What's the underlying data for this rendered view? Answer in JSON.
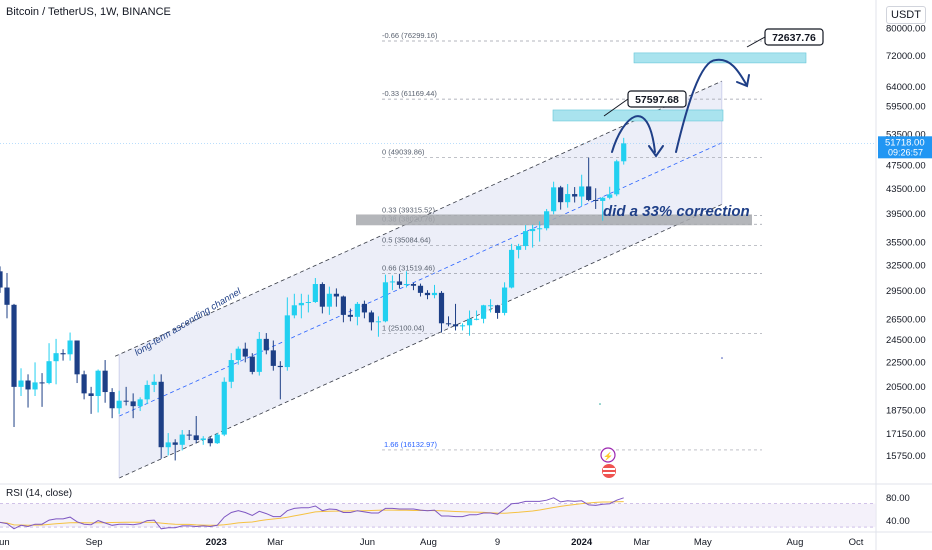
{
  "header": {
    "symbol_line": "Bitcoin / TetherUS, 1W, BINANCE",
    "quote_currency": "USDT"
  },
  "colors": {
    "up": "#22d0f0",
    "down": "#1d3f86",
    "channel_fill": "#e6e8f6",
    "target_box": "#a9e3ee",
    "level_line": "#9a9ea8",
    "fib_text": "#5a6270",
    "blue_text": "#2962ff",
    "annotation": "#1f3f87",
    "current_price_bg": "#2196f3",
    "rsi_line": "#7e57c2",
    "rsi_ma": "#f5c242"
  },
  "chart_data": {
    "type": "candlestick",
    "title": "Bitcoin / TetherUS, 1W, BINANCE",
    "ylim": [
      14500,
      82000
    ],
    "y_scale": "log",
    "y_ticks": [
      "80000.00",
      "72000.00",
      "64000.00",
      "59500.00",
      "53500.00",
      "47500.00",
      "43500.00",
      "39500.00",
      "35500.00",
      "32500.00",
      "29500.00",
      "26500.00",
      "24500.00",
      "22500.00",
      "20500.00",
      "18750.00",
      "17150.00",
      "15750.00"
    ],
    "y_tick_values": [
      80000,
      72000,
      64000,
      59500,
      53500,
      47500,
      43500,
      39500,
      35500,
      32500,
      29500,
      26500,
      24500,
      22500,
      20500,
      18750,
      17150,
      15750
    ],
    "x_labels": [
      {
        "label": "Jun",
        "date": "2022-06-01"
      },
      {
        "label": "Sep",
        "date": "2022-09-01"
      },
      {
        "label": "2023",
        "date": "2023-01-01"
      },
      {
        "label": "Mar",
        "date": "2023-03-01"
      },
      {
        "label": "Jun",
        "date": "2023-06-01"
      },
      {
        "label": "Aug",
        "date": "2023-08-01"
      },
      {
        "label": "9",
        "date": "2023-10-09"
      },
      {
        "label": "2024",
        "date": "2024-01-01"
      },
      {
        "label": "Mar",
        "date": "2024-03-01"
      },
      {
        "label": "May",
        "date": "2024-05-01"
      },
      {
        "label": "Aug",
        "date": "2024-08-01"
      },
      {
        "label": "Oct",
        "date": "2024-10-01"
      }
    ],
    "date_range": [
      "2022-05-30",
      "2024-10-21"
    ],
    "current_price": "51718.00",
    "countdown": "09:26:57",
    "candles": [
      [
        "2022-05-30",
        31800,
        32400,
        29300,
        29900
      ],
      [
        "2022-06-06",
        29900,
        31600,
        26600,
        28000
      ],
      [
        "2022-06-13",
        28000,
        28100,
        17600,
        20500
      ],
      [
        "2022-06-20",
        20500,
        22000,
        19800,
        21000
      ],
      [
        "2022-06-27",
        21000,
        21500,
        18950,
        20300
      ],
      [
        "2022-07-04",
        20300,
        22500,
        19800,
        20850
      ],
      [
        "2022-07-11",
        20850,
        21600,
        19000,
        20800
      ],
      [
        "2022-07-18",
        20800,
        24200,
        20700,
        22600
      ],
      [
        "2022-07-25",
        22600,
        24600,
        20700,
        23300
      ],
      [
        "2022-08-01",
        23300,
        23650,
        22650,
        23200
      ],
      [
        "2022-08-08",
        23200,
        25200,
        22650,
        24450
      ],
      [
        "2022-08-15",
        24450,
        24450,
        20800,
        21500
      ],
      [
        "2022-08-22",
        21500,
        21800,
        19550,
        20000
      ],
      [
        "2022-08-29",
        20000,
        20500,
        18500,
        19800
      ],
      [
        "2022-09-05",
        19800,
        21900,
        18600,
        21800
      ],
      [
        "2022-09-12",
        21800,
        22700,
        19300,
        20100
      ],
      [
        "2022-09-19",
        20100,
        20400,
        18200,
        18900
      ],
      [
        "2022-09-26",
        18900,
        20200,
        18500,
        19450
      ],
      [
        "2022-10-03",
        19450,
        20500,
        19100,
        19400
      ],
      [
        "2022-10-10",
        19400,
        20000,
        18200,
        19050
      ],
      [
        "2022-10-17",
        19050,
        19700,
        18700,
        19550
      ],
      [
        "2022-10-24",
        19550,
        21000,
        19200,
        20650
      ],
      [
        "2022-10-31",
        20650,
        21500,
        20100,
        20900
      ],
      [
        "2022-11-07",
        20900,
        21500,
        15600,
        16300
      ],
      [
        "2022-11-14",
        16300,
        17200,
        15800,
        16600
      ],
      [
        "2022-11-21",
        16600,
        16800,
        15500,
        16450
      ],
      [
        "2022-11-28",
        16450,
        17400,
        16100,
        17100
      ],
      [
        "2022-12-05",
        17100,
        17400,
        16750,
        17050
      ],
      [
        "2022-12-12",
        17050,
        18350,
        16550,
        16750
      ],
      [
        "2022-12-19",
        16750,
        17000,
        16450,
        16850
      ],
      [
        "2022-12-26",
        16850,
        16950,
        16350,
        16550
      ],
      [
        "2023-01-02",
        16550,
        17200,
        16500,
        17100
      ],
      [
        "2023-01-09",
        17100,
        21250,
        17000,
        20900
      ],
      [
        "2023-01-16",
        20900,
        23300,
        20400,
        22700
      ],
      [
        "2023-01-23",
        22700,
        23900,
        22300,
        23700
      ],
      [
        "2023-01-30",
        23700,
        24250,
        22500,
        23000
      ],
      [
        "2023-02-06",
        23000,
        23300,
        21500,
        21700
      ],
      [
        "2023-02-13",
        21700,
        25250,
        21400,
        24600
      ],
      [
        "2023-02-20",
        24600,
        25150,
        23200,
        23550
      ],
      [
        "2023-02-27",
        23550,
        24450,
        21800,
        22200
      ],
      [
        "2023-03-06",
        22200,
        22600,
        19550,
        22100
      ],
      [
        "2023-03-13",
        22100,
        28800,
        21800,
        26900
      ],
      [
        "2023-03-20",
        26900,
        29200,
        26600,
        27950
      ],
      [
        "2023-03-27",
        27950,
        29200,
        26600,
        28200
      ],
      [
        "2023-04-03",
        28200,
        29100,
        27200,
        28300
      ],
      [
        "2023-04-10",
        28300,
        31000,
        28200,
        30300
      ],
      [
        "2023-04-17",
        30300,
        30500,
        27100,
        27800
      ],
      [
        "2023-04-24",
        27800,
        30000,
        26950,
        29200
      ],
      [
        "2023-05-01",
        29200,
        29800,
        27800,
        28900
      ],
      [
        "2023-05-08",
        28900,
        29000,
        26200,
        26950
      ],
      [
        "2023-05-15",
        26950,
        27600,
        26300,
        26750
      ],
      [
        "2023-05-22",
        26750,
        28300,
        25900,
        28100
      ],
      [
        "2023-05-29",
        28100,
        28450,
        26600,
        27200
      ],
      [
        "2023-06-05",
        27200,
        27400,
        25400,
        26200
      ],
      [
        "2023-06-12",
        26200,
        26800,
        24800,
        26300
      ],
      [
        "2023-06-19",
        26300,
        31400,
        26200,
        30500
      ],
      [
        "2023-06-26",
        30500,
        31300,
        29600,
        30600
      ],
      [
        "2023-07-03",
        30600,
        31500,
        29800,
        30200
      ],
      [
        "2023-07-10",
        30200,
        31800,
        29900,
        30300
      ],
      [
        "2023-07-17",
        30300,
        30450,
        29600,
        30100
      ],
      [
        "2023-07-24",
        30100,
        30350,
        28900,
        29300
      ],
      [
        "2023-07-31",
        29300,
        29600,
        28600,
        29050
      ],
      [
        "2023-08-07",
        29050,
        30200,
        28700,
        29300
      ],
      [
        "2023-08-14",
        29300,
        29500,
        25200,
        26100
      ],
      [
        "2023-08-21",
        26100,
        26800,
        25800,
        26000
      ],
      [
        "2023-08-28",
        26000,
        28100,
        25400,
        25800
      ],
      [
        "2023-09-04",
        25800,
        26100,
        25400,
        25900
      ],
      [
        "2023-09-11",
        25900,
        27400,
        24900,
        26550
      ],
      [
        "2023-09-18",
        26550,
        27400,
        26400,
        26550
      ],
      [
        "2023-09-25",
        26550,
        28000,
        26100,
        27950
      ],
      [
        "2023-10-02",
        27950,
        28600,
        27200,
        27950
      ],
      [
        "2023-10-09",
        27950,
        28000,
        26550,
        27150
      ],
      [
        "2023-10-16",
        27150,
        30500,
        26900,
        29900
      ],
      [
        "2023-10-23",
        29900,
        35300,
        29800,
        34500
      ],
      [
        "2023-10-30",
        34500,
        35300,
        33400,
        35000
      ],
      [
        "2023-11-06",
        35000,
        37900,
        34500,
        37050
      ],
      [
        "2023-11-13",
        37050,
        37950,
        34800,
        37350
      ],
      [
        "2023-11-20",
        37350,
        38450,
        35600,
        37450
      ],
      [
        "2023-11-27",
        37450,
        40300,
        37150,
        39950
      ],
      [
        "2023-12-04",
        39950,
        44700,
        39500,
        43750
      ],
      [
        "2023-12-11",
        43750,
        44000,
        40200,
        41350
      ],
      [
        "2023-12-18",
        41350,
        44300,
        40500,
        42650
      ],
      [
        "2023-12-25",
        42650,
        43800,
        41300,
        42250
      ],
      [
        "2024-01-01",
        42250,
        45900,
        40750,
        43900
      ],
      [
        "2024-01-08",
        43900,
        48970,
        41500,
        41700
      ],
      [
        "2024-01-15",
        41700,
        43600,
        40300,
        41550
      ],
      [
        "2024-01-22",
        41550,
        42200,
        38550,
        42050
      ],
      [
        "2024-01-29",
        42050,
        43850,
        41800,
        42600
      ],
      [
        "2024-02-05",
        42600,
        48600,
        42300,
        48300
      ],
      [
        "2024-02-12",
        48300,
        52800,
        47700,
        51718
      ]
    ],
    "fib_levels": [
      {
        "label": "-0.66 (76299.16)",
        "price": 76299.16
      },
      {
        "label": "-0.33 (61169.44)",
        "price": 61169.44
      },
      {
        "label": "0 (49039.86)",
        "price": 49039.86
      },
      {
        "label": "0.33 (39315.52)",
        "price": 39315.52
      },
      {
        "label": "0.38 (38020.76)",
        "price": 38020.76
      },
      {
        "label": "0.5 (35084.64)",
        "price": 35084.64
      },
      {
        "label": "0.66 (31519.46)",
        "price": 31519.46
      },
      {
        "label": "1 (25100.04)",
        "price": 25100.04
      },
      {
        "label": "1.66 (16132.97)",
        "price": 16132.97
      }
    ],
    "targets": [
      {
        "label": "57597.68",
        "price": 57597.68
      },
      {
        "label": "72637.76",
        "price": 72637.76
      }
    ],
    "channel": {
      "name": "long-term ascending channel",
      "upper": [
        [
          "2022-09-26",
          23200
        ],
        [
          "2024-05-20",
          65500
        ]
      ],
      "lower": [
        [
          "2022-09-26",
          14500
        ],
        [
          "2024-05-20",
          41000
        ]
      ]
    },
    "annotation": "did a 33% correction",
    "rsi": {
      "label": "RSI (14, close)",
      "ticks": [
        "80.00",
        "40.00"
      ],
      "tick_values": [
        80,
        40
      ],
      "ylim": [
        25,
        90
      ],
      "values": [
        38,
        36,
        27,
        33,
        31,
        35,
        35,
        42,
        44,
        44,
        47,
        39,
        35,
        34,
        41,
        37,
        33,
        35,
        35,
        34,
        36,
        41,
        42,
        27,
        29,
        29,
        32,
        32,
        31,
        32,
        31,
        33,
        47,
        55,
        58,
        55,
        50,
        57,
        53,
        48,
        48,
        58,
        62,
        63,
        63,
        66,
        58,
        61,
        60,
        55,
        55,
        58,
        56,
        54,
        54,
        62,
        62,
        61,
        61,
        61,
        59,
        58,
        59,
        49,
        49,
        48,
        48,
        51,
        51,
        54,
        54,
        52,
        60,
        70,
        71,
        74,
        74,
        74,
        76,
        80,
        73,
        75,
        74,
        75,
        68,
        67,
        69,
        70,
        76,
        80
      ]
    },
    "grid": false,
    "legend": "none"
  }
}
